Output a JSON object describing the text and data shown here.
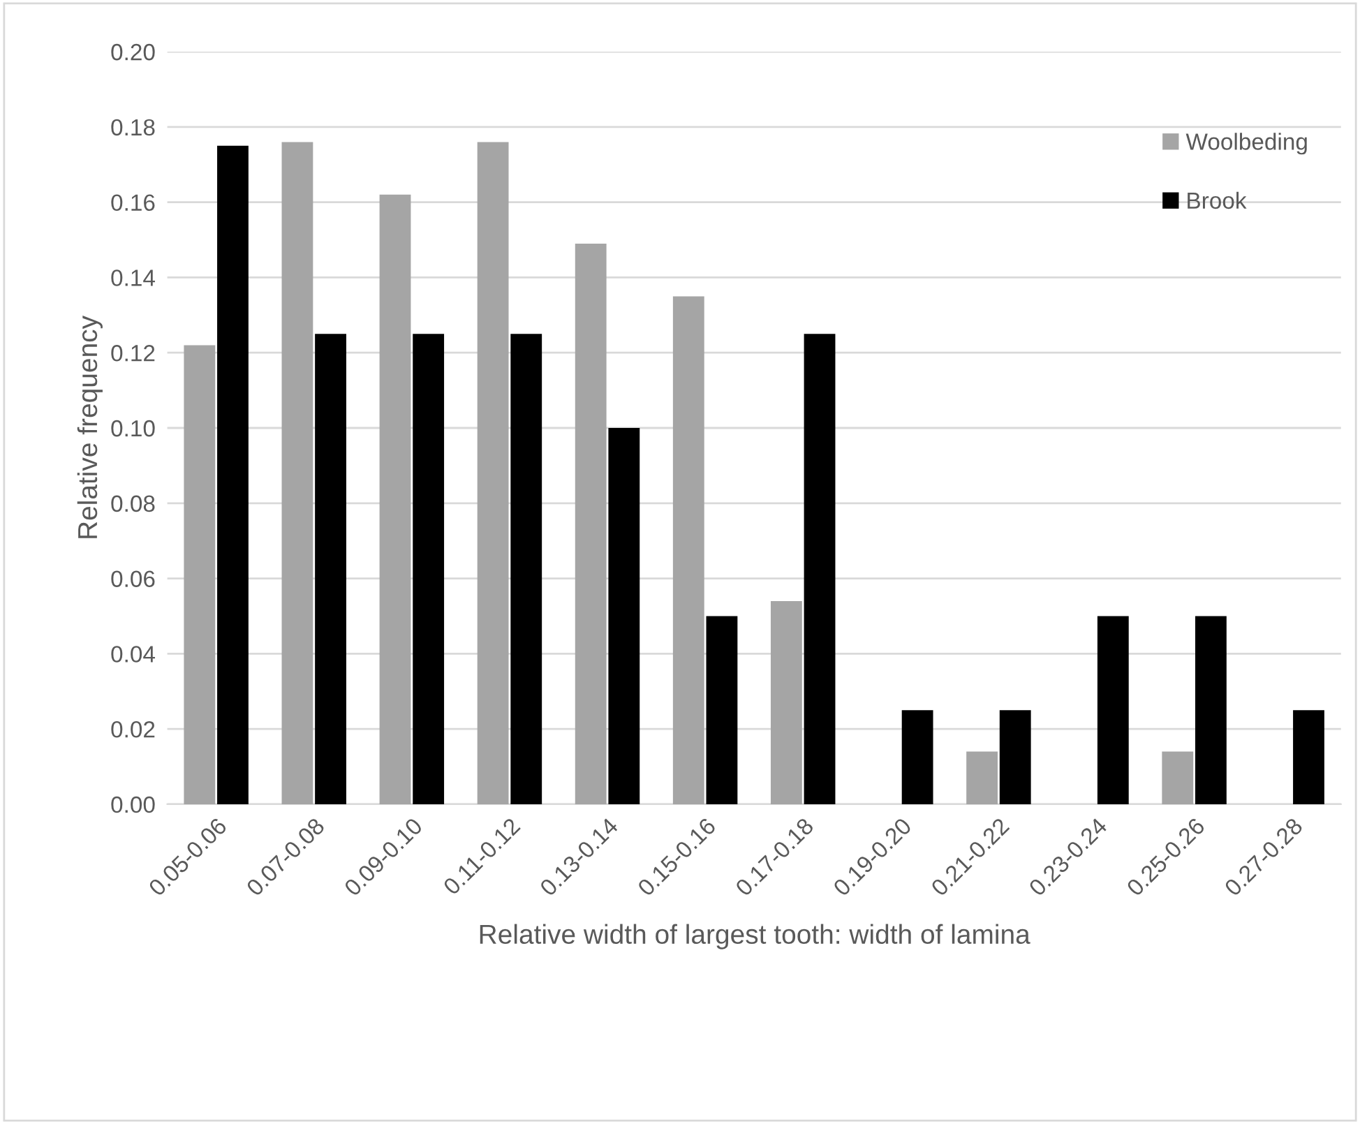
{
  "chart_data": {
    "type": "bar",
    "xlabel": "Relative width of largest tooth: width of lamina",
    "ylabel": "Relative frequency",
    "categories": [
      "0.05-0.06",
      "0.07-0.08",
      "0.09-0.10",
      "0.11-0.12",
      "0.13-0.14",
      "0.15-0.16",
      "0.17-0.18",
      "0.19-0.20",
      "0.21-0.22",
      "0.23-0.24",
      "0.25-0.26",
      "0.27-0.28"
    ],
    "series": [
      {
        "name": "Woolbeding",
        "color": "#a5a5a5",
        "values": [
          0.122,
          0.176,
          0.162,
          0.176,
          0.149,
          0.135,
          0.054,
          0,
          0.014,
          0,
          0.014,
          0
        ]
      },
      {
        "name": "Brook",
        "color": "#000000",
        "values": [
          0.175,
          0.125,
          0.125,
          0.125,
          0.1,
          0.05,
          0.125,
          0.025,
          0.025,
          0.05,
          0.05,
          0.025
        ]
      }
    ],
    "ylim": [
      0,
      0.2
    ],
    "yticks": [
      {
        "value": 0,
        "label": "0.00"
      },
      {
        "value": 0.02,
        "label": "0.02"
      },
      {
        "value": 0.04,
        "label": "0.04"
      },
      {
        "value": 0.06,
        "label": "0.06"
      },
      {
        "value": 0.08,
        "label": "0.08"
      },
      {
        "value": 0.1,
        "label": "0.10"
      },
      {
        "value": 0.12,
        "label": "0.12"
      },
      {
        "value": 0.14,
        "label": "0.14"
      },
      {
        "value": 0.16,
        "label": "0.16"
      },
      {
        "value": 0.18,
        "label": "0.18"
      },
      {
        "value": 0.2,
        "label": "0.20"
      }
    ],
    "grid": "y",
    "legend": "top right"
  }
}
